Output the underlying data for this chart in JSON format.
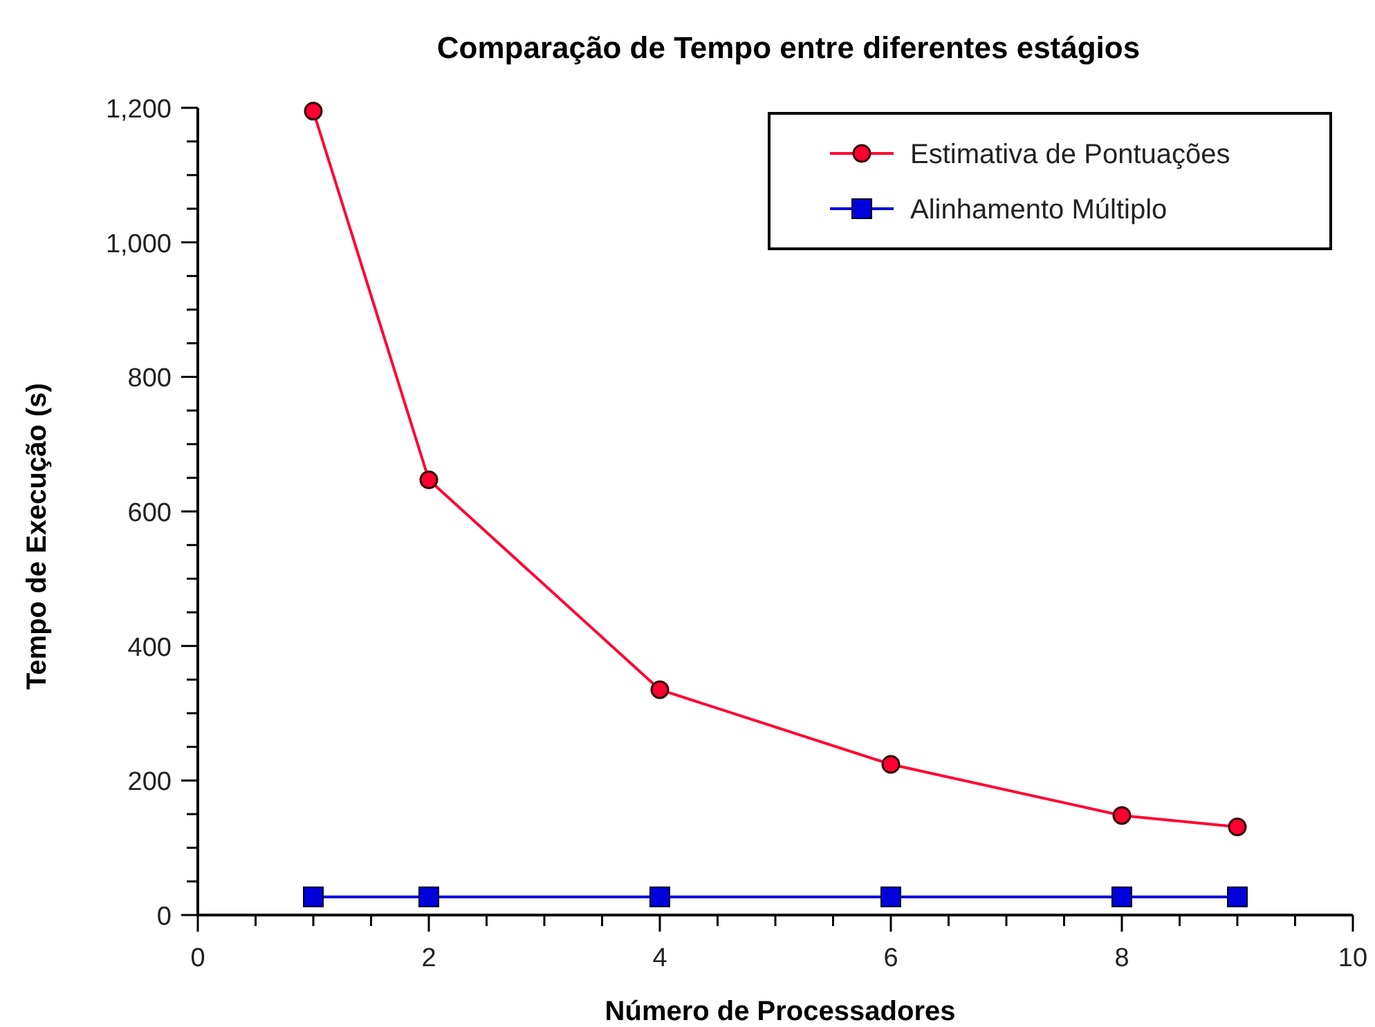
{
  "chart_data": {
    "type": "line",
    "title": "Comparação de Tempo entre diferentes estágios",
    "xlabel": "Número de Processadores",
    "ylabel": "Tempo de Execução (s)",
    "x": [
      1,
      2,
      4,
      6,
      8,
      9
    ],
    "series": [
      {
        "name": "Estimativa de Pontuações",
        "color": "#ff0033",
        "marker": "circle",
        "values": [
          1195,
          647,
          335,
          224,
          148,
          131
        ]
      },
      {
        "name": "Alinhamento Múltiplo",
        "color": "#0000dd",
        "marker": "square",
        "values": [
          27,
          27,
          27,
          27,
          27,
          27
        ]
      }
    ],
    "xlim": [
      0,
      10
    ],
    "xticks": [
      0,
      {
        "value": 0.5,
        "label": null
      },
      2,
      {
        "value": 1,
        "label": null
      },
      {
        "value": 1.5,
        "label": null
      },
      {
        "value": 2.5,
        "label": null
      },
      {
        "value": 3,
        "label": null
      },
      {
        "value": 3.5,
        "label": null
      },
      4,
      {
        "value": 4.5,
        "label": null
      },
      {
        "value": 5,
        "label": null
      },
      {
        "value": 5.5,
        "label": null
      },
      6,
      {
        "value": 6.5,
        "label": null
      },
      {
        "value": 7,
        "label": null
      },
      {
        "value": 7.5,
        "label": null
      },
      8,
      {
        "value": 8.5,
        "label": null
      },
      {
        "value": 9,
        "label": null
      },
      {
        "value": 9.5,
        "label": null
      },
      10
    ],
    "ylim": [
      0,
      1200
    ],
    "yticks": [
      0,
      {
        "value": 50,
        "label": null
      },
      {
        "value": 100,
        "label": null
      },
      {
        "value": 150,
        "label": null
      },
      200,
      {
        "value": 250,
        "label": null
      },
      {
        "value": 300,
        "label": null
      },
      {
        "value": 350,
        "label": null
      },
      400,
      {
        "value": 450,
        "label": null
      },
      {
        "value": 500,
        "label": null
      },
      {
        "value": 550,
        "label": null
      },
      600,
      {
        "value": 650,
        "label": null
      },
      {
        "value": 700,
        "label": null
      },
      {
        "value": 750,
        "label": null
      },
      800,
      {
        "value": 850,
        "label": null
      },
      {
        "value": 900,
        "label": null
      },
      {
        "value": 950,
        "label": null
      },
      {
        "value": 1000,
        "label": "1,000"
      },
      {
        "value": 1050,
        "label": null
      },
      {
        "value": 1100,
        "label": null
      },
      {
        "value": 1150,
        "label": null
      },
      {
        "value": 1200,
        "label": "1,200"
      }
    ],
    "grid": false,
    "legend": "top right"
  }
}
